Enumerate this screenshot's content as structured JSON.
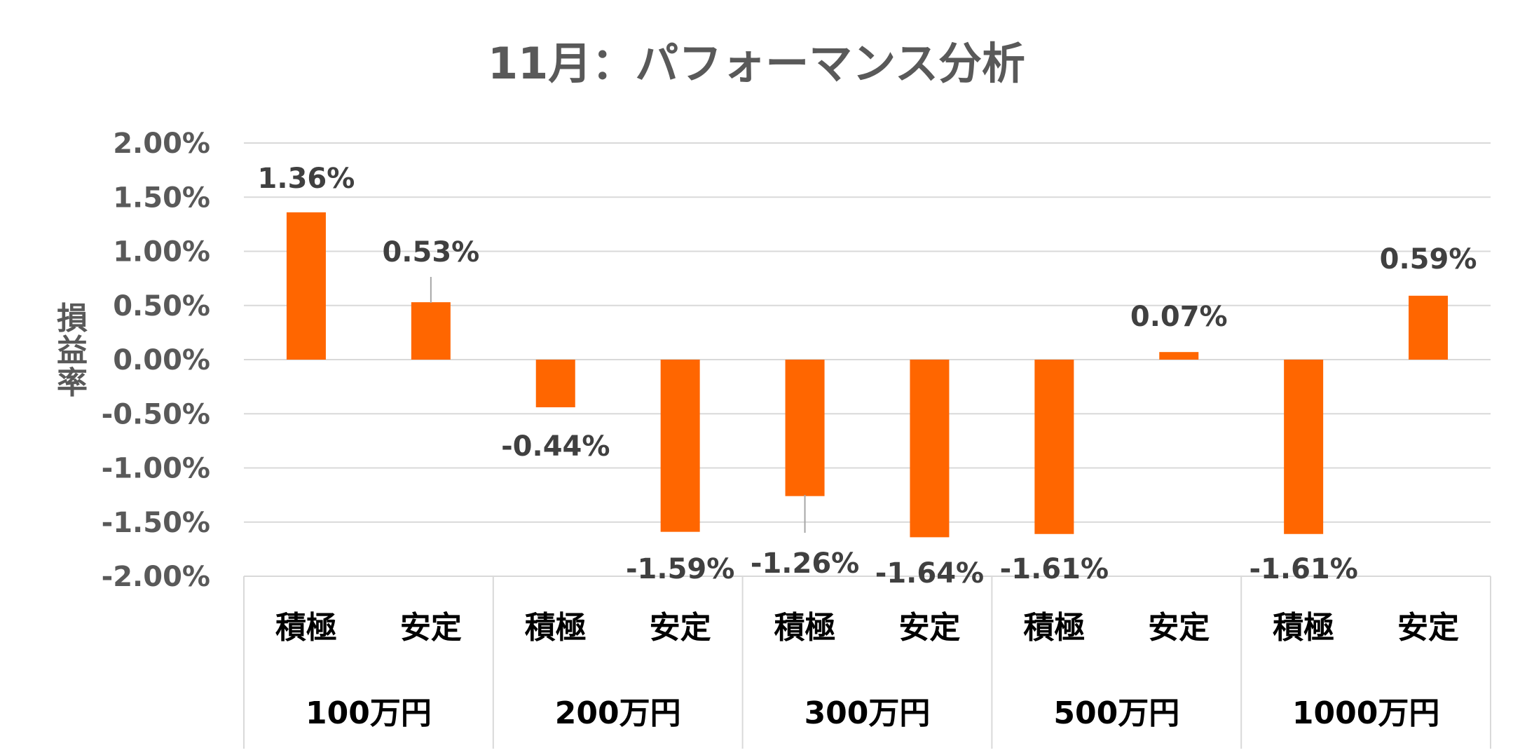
{
  "chart_data": {
    "type": "bar",
    "title": "11月：パフォーマンス分析",
    "ylabel": "損益率",
    "xlabel": "",
    "ylim": [
      -0.02,
      0.02
    ],
    "yticks": [
      "2.00%",
      "1.50%",
      "1.00%",
      "0.50%",
      "0.00%",
      "-0.50%",
      "-1.00%",
      "-1.50%",
      "-2.00%"
    ],
    "groups": [
      "100万円",
      "200万円",
      "300万円",
      "500万円",
      "1000万円"
    ],
    "categories": [
      "積極",
      "安定",
      "積極",
      "安定",
      "積極",
      "安定",
      "積極",
      "安定",
      "積極",
      "安定"
    ],
    "values": [
      0.0136,
      0.0053,
      -0.0044,
      -0.0159,
      -0.0126,
      -0.0164,
      -0.0161,
      0.0007,
      -0.0161,
      0.0059
    ],
    "data_labels": [
      "1.36%",
      "0.53%",
      "-0.44%",
      "-1.59%",
      "-1.26%",
      "-1.64%",
      "-1.61%",
      "0.07%",
      "-1.61%",
      "0.59%"
    ],
    "bar_color": "#FF6600",
    "grid": true,
    "legend": "none"
  }
}
